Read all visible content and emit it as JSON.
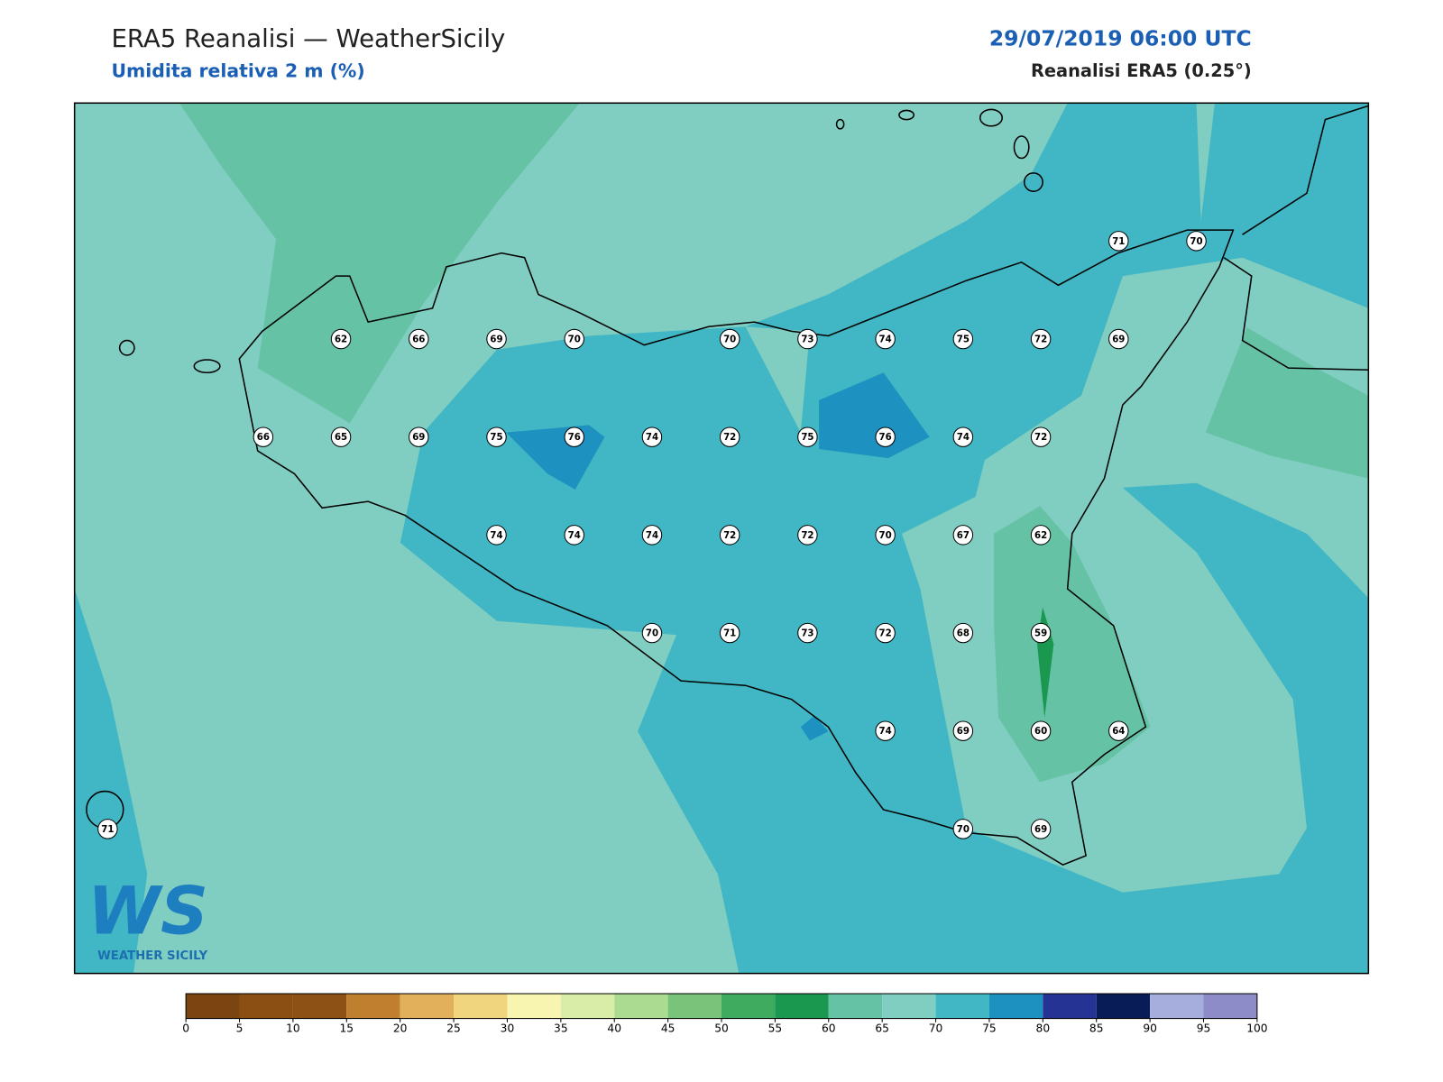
{
  "header": {
    "title": "ERA5 Reanalisi — WeatherSicily",
    "subtitle": "Umidita relativa 2 m (%)",
    "date": "29/07/2019 06:00 UTC",
    "source": "Reanalisi ERA5 (0.25°)"
  },
  "stations": {
    "rows": [
      [
        null,
        null,
        null,
        null,
        null,
        null,
        null,
        null,
        null,
        null,
        null,
        null,
        null,
        71,
        70
      ],
      [
        null,
        null,
        null,
        62,
        66,
        69,
        70,
        null,
        70,
        73,
        74,
        75,
        72,
        69,
        null
      ],
      [
        null,
        null,
        66,
        65,
        69,
        75,
        76,
        74,
        72,
        75,
        76,
        74,
        72,
        null,
        null
      ],
      [
        null,
        null,
        null,
        null,
        null,
        74,
        74,
        74,
        72,
        72,
        70,
        67,
        62,
        null,
        null
      ],
      [
        null,
        null,
        null,
        null,
        null,
        null,
        null,
        70,
        71,
        73,
        72,
        68,
        59,
        null,
        null
      ],
      [
        null,
        null,
        null,
        null,
        null,
        null,
        null,
        null,
        null,
        null,
        74,
        69,
        60,
        64,
        null
      ],
      [
        71,
        null,
        null,
        null,
        null,
        null,
        null,
        null,
        null,
        null,
        null,
        70,
        69,
        null,
        null
      ]
    ]
  },
  "colorbar": {
    "ticks": [
      0,
      5,
      10,
      15,
      20,
      25,
      30,
      35,
      40,
      45,
      50,
      55,
      60,
      65,
      70,
      75,
      80,
      85,
      90,
      95,
      100
    ],
    "colors": [
      "#7a4510",
      "#8c4f12",
      "#8d5116",
      "#c07f2e",
      "#e0b05a",
      "#f0d47e",
      "#f7f5b0",
      "#d8eea8",
      "#aadb90",
      "#78c47a",
      "#3fab5e",
      "#1a9850",
      "#66c2a5",
      "#80cdc1",
      "#41b6c4",
      "#1d91c0",
      "#253494",
      "#081d58",
      "#a6aede",
      "#8e8cc8"
    ]
  },
  "logo": {
    "letters": "WS",
    "name": "WEATHER SICILY"
  }
}
